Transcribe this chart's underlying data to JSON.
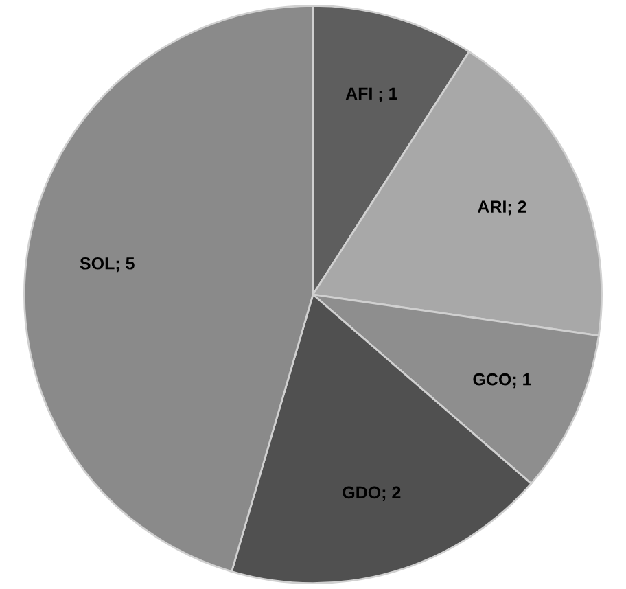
{
  "chart_data": {
    "type": "pie",
    "categories": [
      "AFI ; 1",
      "ARI; 2",
      "GCO; 1",
      "GDO; 2",
      "SOL; 5"
    ],
    "values": [
      1,
      2,
      1,
      2,
      5
    ],
    "colors": [
      "#5e5e5e",
      "#a8a8a8",
      "#8e8e8e",
      "#505050",
      "#8a8a8a"
    ],
    "legend": false
  }
}
